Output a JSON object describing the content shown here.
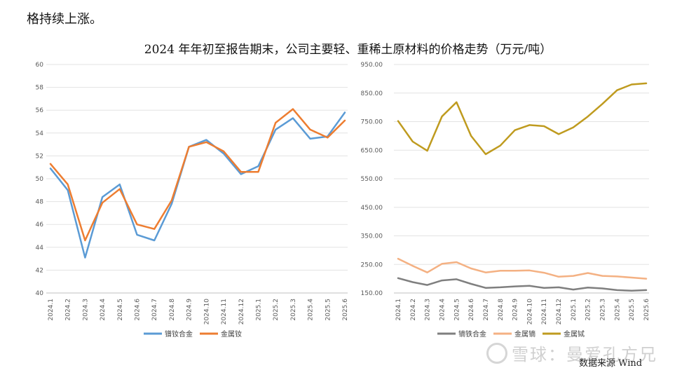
{
  "intro_text": "格持续上涨。",
  "title": "2024 年年初至报告期末，公司主要轻、重稀土原材料的价格走势（万元/吨）",
  "source": "数据来源 Wind",
  "watermark": "雪球：曼爱孔方兄",
  "chart_data": [
    {
      "type": "line",
      "categories": [
        "2024.1",
        "2024.2",
        "2024.3",
        "2024.4",
        "2024.5",
        "2024.6",
        "2024.7",
        "2024.8",
        "2024.9",
        "2024.10",
        "2024.11",
        "2024.12",
        "2025.1",
        "2025.2",
        "2025.3",
        "2025.4",
        "2025.5",
        "2025.6"
      ],
      "ylim": [
        40,
        60
      ],
      "yticks": [
        "40",
        "42",
        "44",
        "46",
        "48",
        "50",
        "52",
        "54",
        "56",
        "58",
        "60"
      ],
      "grid": true,
      "legend_position": "bottom",
      "series": [
        {
          "name": "镨钕合金",
          "color": "#5b9bd5",
          "values": [
            50.9,
            49.0,
            43.1,
            48.4,
            49.5,
            45.1,
            44.6,
            47.8,
            52.8,
            53.4,
            52.2,
            50.4,
            51.1,
            54.3,
            55.3,
            53.5,
            53.7,
            55.8
          ]
        },
        {
          "name": "金属钕",
          "color": "#ed7d31",
          "values": [
            51.3,
            49.5,
            44.6,
            47.9,
            49.1,
            46.0,
            45.6,
            48.1,
            52.8,
            53.2,
            52.4,
            50.6,
            50.6,
            54.9,
            56.1,
            54.3,
            53.6,
            55.1
          ]
        }
      ]
    },
    {
      "type": "line",
      "categories": [
        "2024.1",
        "2024.2",
        "2024.3",
        "2024.4",
        "2024.5",
        "2024.6",
        "2024.7",
        "2024.8",
        "2024.9",
        "2024.10",
        "2024.11",
        "2024.12",
        "2025.1",
        "2025.2",
        "2025.3",
        "2025.4",
        "2025.5",
        "2025.6"
      ],
      "ylim": [
        150,
        950
      ],
      "yticks": [
        "150.00",
        "250.00",
        "350.00",
        "450.00",
        "550.00",
        "650.00",
        "750.00",
        "850.00",
        "950.00"
      ],
      "grid": true,
      "legend_position": "bottom",
      "series": [
        {
          "name": "镝铁合金",
          "color": "#7f7f7f",
          "values": [
            202,
            188,
            178,
            194,
            198,
            182,
            168,
            170,
            173,
            175,
            168,
            170,
            162,
            169,
            166,
            160,
            158,
            160
          ]
        },
        {
          "name": "金属镝",
          "color": "#f4b183",
          "values": [
            270,
            245,
            222,
            252,
            258,
            236,
            222,
            228,
            228,
            229,
            221,
            207,
            210,
            220,
            210,
            208,
            204,
            200
          ]
        },
        {
          "name": "金属铽",
          "color": "#bf9b1f",
          "values": [
            752,
            680,
            648,
            768,
            818,
            700,
            636,
            666,
            720,
            738,
            734,
            706,
            730,
            768,
            812,
            860,
            880,
            884
          ]
        }
      ]
    }
  ]
}
